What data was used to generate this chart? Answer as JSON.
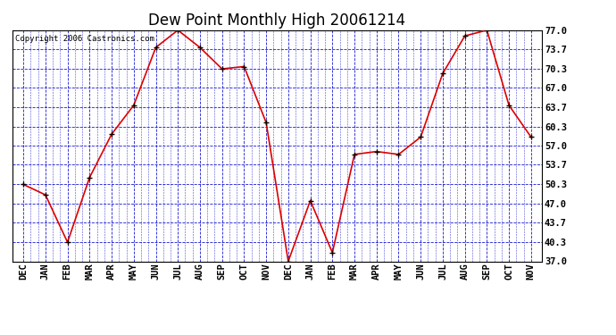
{
  "title": "Dew Point Monthly High 20061214",
  "copyright": "Copyright 2006 Castronics.com",
  "labels": [
    "DEC",
    "JAN",
    "FEB",
    "MAR",
    "APR",
    "MAY",
    "JUN",
    "JUL",
    "AUG",
    "SEP",
    "OCT",
    "NOV",
    "DEC",
    "JAN",
    "FEB",
    "MAR",
    "APR",
    "MAY",
    "JUN",
    "JUL",
    "AUG",
    "SEP",
    "OCT",
    "NOV"
  ],
  "values": [
    50.3,
    48.5,
    40.3,
    51.5,
    59.0,
    64.0,
    74.0,
    77.0,
    74.0,
    70.3,
    70.7,
    61.0,
    37.0,
    47.5,
    38.5,
    55.5,
    56.0,
    55.5,
    58.5,
    69.5,
    76.0,
    77.0,
    64.0,
    58.5
  ],
  "yticks": [
    37.0,
    40.3,
    43.7,
    47.0,
    50.3,
    53.7,
    57.0,
    60.3,
    63.7,
    67.0,
    70.3,
    73.7,
    77.0
  ],
  "ymin": 37.0,
  "ymax": 77.0,
  "bg_color": "#ffffff",
  "plot_bg_color": "#ffffff",
  "line_color": "#dd0000",
  "marker_color": "#110000",
  "grid_color": "#0000cc",
  "title_fontsize": 12,
  "copyright_fontsize": 6.5,
  "tick_fontsize": 7.5
}
